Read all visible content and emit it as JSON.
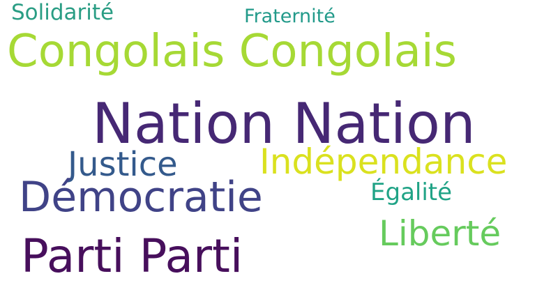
{
  "cloud": {
    "words": {
      "nation": {
        "text": "Nation Nation",
        "color": "#462874"
      },
      "congolais": {
        "text": "Congolais Congolais",
        "color": "#a6d935"
      },
      "parti": {
        "text": "Parti Parti",
        "color": "#470f5c"
      },
      "democratie": {
        "text": "Démocratie",
        "color": "#404387"
      },
      "independance": {
        "text": "Indépendance",
        "color": "#dae11f"
      },
      "justice": {
        "text": "Justice",
        "color": "#345a8c"
      },
      "liberte": {
        "text": "Liberté",
        "color": "#66cb5d"
      },
      "egalite": {
        "text": "Égalité",
        "color": "#20a386"
      },
      "solidarite": {
        "text": "Solidarité",
        "color": "#2a9d84"
      },
      "fraternite": {
        "text": "Fraternité",
        "color": "#229a8a"
      }
    }
  }
}
